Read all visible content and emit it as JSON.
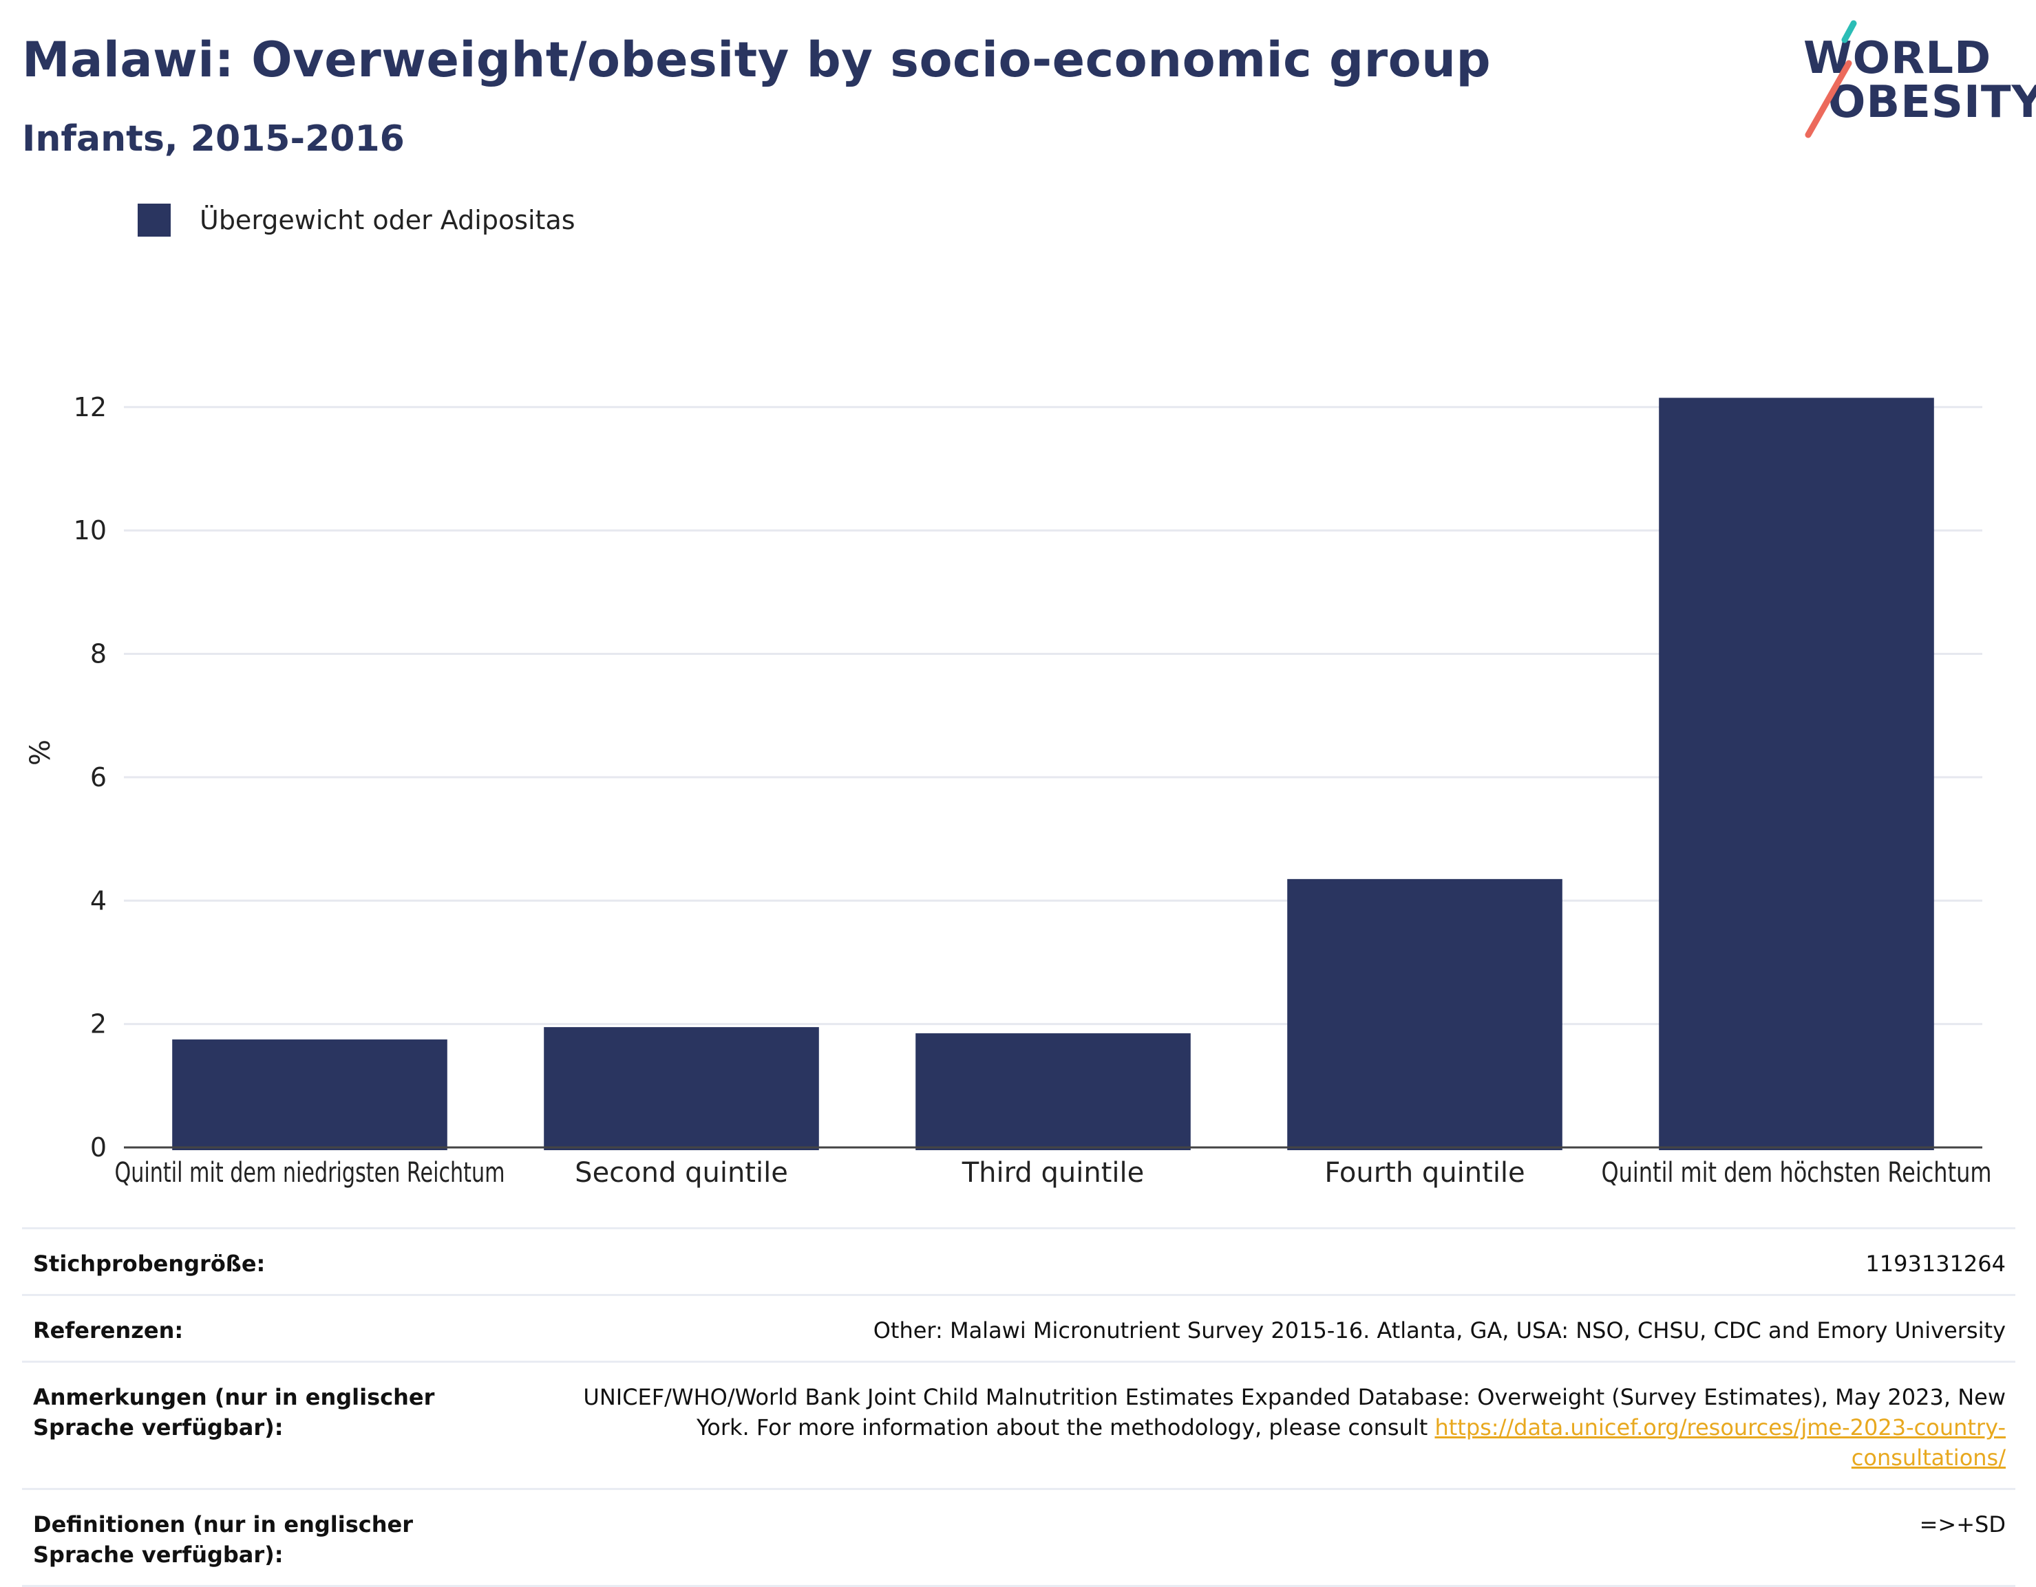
{
  "header": {
    "title": "Malawi: Overweight/obesity by socio-economic group",
    "subtitle": "Infants, 2015-2016"
  },
  "logo": {
    "line1": "WORLD",
    "line2": "OBESITY",
    "colors": {
      "text": "#2a3560",
      "slash_teal": "#2bbdb6",
      "slash_coral": "#ec6a5c"
    }
  },
  "legend": {
    "label": "Übergewicht oder Adipositas",
    "color": "#2a3560"
  },
  "chart_data": {
    "type": "bar",
    "categories": [
      "Quintil mit dem niedrigsten Reichtum",
      "Second quintile",
      "Third quintile",
      "Fourth quintile",
      "Quintil mit dem höchsten Reichtum"
    ],
    "series": [
      {
        "name": "Übergewicht oder Adipositas",
        "values": [
          1.75,
          1.95,
          1.85,
          4.35,
          12.15
        ],
        "color": "#2a3560"
      }
    ],
    "ylabel": "%",
    "xlabel": "",
    "ylim": [
      0,
      12.8
    ],
    "yticks": [
      0,
      2,
      4,
      6,
      8,
      10,
      12
    ],
    "grid": true,
    "legend_position": "top-left"
  },
  "footer": {
    "rows": [
      {
        "key": "Stichprobengröße:",
        "value": "1193131264"
      },
      {
        "key": "Referenzen:",
        "value": "Other: Malawi Micronutrient Survey 2015-16. Atlanta, GA, USA: NSO, CHSU, CDC and Emory University"
      },
      {
        "key": "Anmerkungen (nur in englischer Sprache verfügbar):",
        "value": "UNICEF/WHO/World Bank Joint Child Malnutrition Estimates Expanded Database: Overweight (Survey Estimates), May 2023, New York. For more information about the methodology, please consult ",
        "link": "https://data.unicef.org/resources/jme-2023-country-consultations/"
      },
      {
        "key": "Definitionen (nur in englischer Sprache verfügbar):",
        "value": "=>+SD"
      }
    ]
  }
}
